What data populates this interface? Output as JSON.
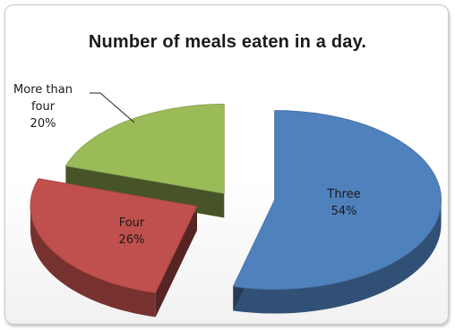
{
  "chart_data": {
    "type": "pie",
    "title": "Number of meals eaten in a day.",
    "exploded": true,
    "three_d": true,
    "slices": [
      {
        "label": "Three",
        "value": 54,
        "display": "54%",
        "color": "#4f81bd"
      },
      {
        "label": "Four",
        "value": 26,
        "display": "26%",
        "color": "#c0504d"
      },
      {
        "label": "More than four",
        "label_lines": [
          "More than",
          "four"
        ],
        "value": 20,
        "display": "20%",
        "color": "#9bbb59"
      }
    ]
  }
}
